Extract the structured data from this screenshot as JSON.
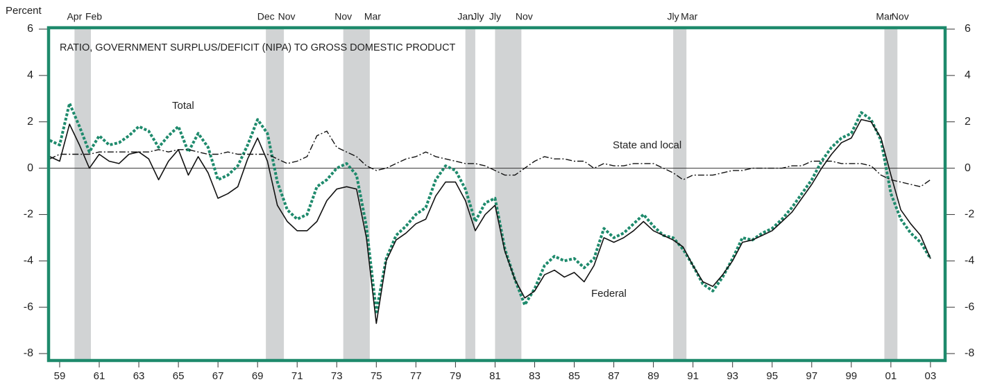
{
  "chart_data": {
    "type": "line",
    "title": "RATIO, GOVERNMENT SURPLUS/DEFICIT (NIPA) TO GROSS DOMESTIC PRODUCT",
    "y_label": "Percent",
    "x": [
      1959.0,
      1959.5,
      1960.0,
      1960.5,
      1961.0,
      1961.5,
      1962.0,
      1962.5,
      1963.0,
      1963.5,
      1964.0,
      1964.5,
      1965.0,
      1965.5,
      1966.0,
      1966.5,
      1967.0,
      1967.5,
      1968.0,
      1968.5,
      1969.0,
      1969.5,
      1970.0,
      1970.5,
      1971.0,
      1971.5,
      1972.0,
      1972.5,
      1973.0,
      1973.5,
      1974.0,
      1974.5,
      1975.0,
      1975.5,
      1976.0,
      1976.5,
      1977.0,
      1977.5,
      1978.0,
      1978.5,
      1979.0,
      1979.5,
      1980.0,
      1980.5,
      1981.0,
      1981.5,
      1982.0,
      1982.5,
      1983.0,
      1983.5,
      1984.0,
      1984.5,
      1985.0,
      1985.5,
      1986.0,
      1986.5,
      1987.0,
      1987.5,
      1988.0,
      1988.5,
      1989.0,
      1989.5,
      1990.0,
      1990.5,
      1991.0,
      1991.5,
      1992.0,
      1992.5,
      1993.0,
      1993.5,
      1994.0,
      1994.5,
      1995.0,
      1995.5,
      1996.0,
      1996.5,
      1997.0,
      1997.5,
      1998.0,
      1998.5,
      1999.0,
      1999.5,
      2000.0,
      2000.5,
      2001.0,
      2001.5,
      2002.0,
      2002.5,
      2003.0,
      2003.5
    ],
    "series": [
      {
        "name": "Total",
        "color": "#1e8a6c",
        "style": "dotted",
        "values": [
          1.2,
          1.0,
          2.8,
          1.8,
          0.7,
          1.4,
          1.0,
          1.1,
          1.4,
          1.8,
          1.6,
          0.9,
          1.4,
          1.8,
          0.7,
          1.5,
          0.9,
          -0.5,
          -0.3,
          0.1,
          1.0,
          2.1,
          1.5,
          -0.6,
          -1.8,
          -2.2,
          -2.0,
          -0.8,
          -0.5,
          0.0,
          0.2,
          -0.3,
          -2.5,
          -6.2,
          -3.9,
          -2.9,
          -2.5,
          -2.0,
          -1.7,
          -0.5,
          0.1,
          -0.1,
          -0.9,
          -2.3,
          -1.5,
          -1.3,
          -3.5,
          -4.8,
          -5.9,
          -5.2,
          -4.2,
          -3.8,
          -4.0,
          -3.9,
          -4.3,
          -3.9,
          -2.6,
          -3.0,
          -2.8,
          -2.4,
          -2.0,
          -2.5,
          -2.9,
          -3.0,
          -3.5,
          -4.2,
          -5.0,
          -5.3,
          -4.7,
          -3.9,
          -3.0,
          -3.1,
          -2.8,
          -2.6,
          -2.2,
          -1.7,
          -1.1,
          -0.5,
          0.3,
          0.9,
          1.3,
          1.5,
          2.4,
          2.1,
          1.2,
          -1.1,
          -2.2,
          -2.8,
          -3.2,
          -3.9
        ]
      },
      {
        "name": "Federal",
        "color": "#111111",
        "style": "solid",
        "values": [
          0.5,
          0.3,
          1.9,
          1.0,
          0.0,
          0.6,
          0.3,
          0.2,
          0.6,
          0.7,
          0.4,
          -0.5,
          0.3,
          0.8,
          -0.3,
          0.5,
          -0.2,
          -1.3,
          -1.1,
          -0.8,
          0.4,
          1.3,
          0.3,
          -1.6,
          -2.3,
          -2.7,
          -2.7,
          -2.3,
          -1.4,
          -0.9,
          -0.8,
          -0.9,
          -3.0,
          -6.7,
          -4.0,
          -3.1,
          -2.8,
          -2.4,
          -2.2,
          -1.2,
          -0.6,
          -0.6,
          -1.4,
          -2.7,
          -2.0,
          -1.6,
          -3.6,
          -4.8,
          -5.6,
          -5.3,
          -4.6,
          -4.4,
          -4.7,
          -4.5,
          -4.9,
          -4.2,
          -3.0,
          -3.2,
          -3.0,
          -2.7,
          -2.3,
          -2.7,
          -2.9,
          -3.1,
          -3.4,
          -4.2,
          -4.9,
          -5.1,
          -4.6,
          -4.0,
          -3.2,
          -3.1,
          -2.9,
          -2.7,
          -2.3,
          -1.9,
          -1.3,
          -0.7,
          0.0,
          0.6,
          1.1,
          1.3,
          2.1,
          2.0,
          1.3,
          -0.3,
          -1.8,
          -2.4,
          -2.9,
          -3.9
        ]
      },
      {
        "name": "State and local",
        "color": "#111111",
        "style": "dashdot",
        "values": [
          0.4,
          0.6,
          0.6,
          0.6,
          0.6,
          0.7,
          0.7,
          0.7,
          0.7,
          0.7,
          0.7,
          0.8,
          0.7,
          0.8,
          0.8,
          0.7,
          0.6,
          0.6,
          0.7,
          0.6,
          0.6,
          0.6,
          0.6,
          0.4,
          0.2,
          0.3,
          0.5,
          1.4,
          1.6,
          0.9,
          0.7,
          0.5,
          0.1,
          -0.1,
          0.0,
          0.2,
          0.4,
          0.5,
          0.7,
          0.5,
          0.4,
          0.3,
          0.2,
          0.2,
          0.1,
          -0.1,
          -0.3,
          -0.3,
          0.0,
          0.3,
          0.5,
          0.4,
          0.4,
          0.3,
          0.3,
          0.0,
          0.2,
          0.1,
          0.1,
          0.2,
          0.2,
          0.2,
          0.0,
          -0.2,
          -0.5,
          -0.3,
          -0.3,
          -0.3,
          -0.2,
          -0.1,
          -0.1,
          0.0,
          0.0,
          0.0,
          0.0,
          0.1,
          0.1,
          0.3,
          0.3,
          0.3,
          0.2,
          0.2,
          0.2,
          0.1,
          -0.3,
          -0.5,
          -0.6,
          -0.7,
          -0.8,
          -0.5
        ]
      }
    ],
    "recessions": [
      {
        "start": 1960.25,
        "end": 1961.08,
        "start_label": "Apr",
        "end_label": "Feb"
      },
      {
        "start": 1969.92,
        "end": 1970.83,
        "start_label": "Dec",
        "end_label": "Nov"
      },
      {
        "start": 1973.83,
        "end": 1975.17,
        "start_label": "Nov",
        "end_label": "Mar"
      },
      {
        "start": 1980.0,
        "end": 1980.5,
        "start_label": "Jan",
        "end_label": "Jly"
      },
      {
        "start": 1981.5,
        "end": 1982.83,
        "start_label": "Jly",
        "end_label": "Nov"
      },
      {
        "start": 1990.5,
        "end": 1991.17,
        "start_label": "Jly",
        "end_label": "Mar"
      },
      {
        "start": 2001.17,
        "end": 2001.83,
        "start_label": "Mar",
        "end_label": "Nov"
      }
    ],
    "xlim": [
      1958.94,
      2004.24
    ],
    "xticks": [
      {
        "value": 1959.5,
        "label": "59"
      },
      {
        "value": 1961.5,
        "label": "61"
      },
      {
        "value": 1963.5,
        "label": "63"
      },
      {
        "value": 1965.5,
        "label": "65"
      },
      {
        "value": 1967.5,
        "label": "67"
      },
      {
        "value": 1969.5,
        "label": "69"
      },
      {
        "value": 1971.5,
        "label": "71"
      },
      {
        "value": 1973.5,
        "label": "73"
      },
      {
        "value": 1975.5,
        "label": "75"
      },
      {
        "value": 1977.5,
        "label": "77"
      },
      {
        "value": 1979.5,
        "label": "79"
      },
      {
        "value": 1981.5,
        "label": "81"
      },
      {
        "value": 1983.5,
        "label": "83"
      },
      {
        "value": 1985.5,
        "label": "85"
      },
      {
        "value": 1987.5,
        "label": "87"
      },
      {
        "value": 1989.5,
        "label": "89"
      },
      {
        "value": 1991.5,
        "label": "91"
      },
      {
        "value": 1993.5,
        "label": "93"
      },
      {
        "value": 1995.5,
        "label": "95"
      },
      {
        "value": 1997.5,
        "label": "97"
      },
      {
        "value": 1999.5,
        "label": "99"
      },
      {
        "value": 2001.5,
        "label": "01"
      },
      {
        "value": 2003.5,
        "label": "03"
      }
    ],
    "ylim": [
      -8,
      6
    ],
    "yticks": [
      -8,
      -6,
      -4,
      -2,
      0,
      2,
      4,
      6
    ],
    "zero_line": true,
    "frame_color": "#1e8a6c",
    "recession_color": "#d1d3d4",
    "annotations": [
      "Total",
      "State and local",
      "Federal"
    ]
  }
}
